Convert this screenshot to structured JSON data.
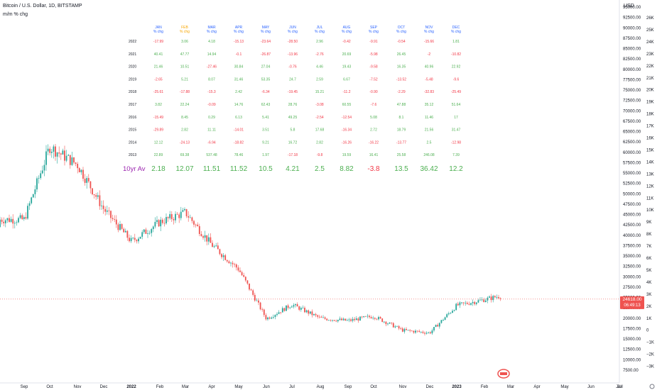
{
  "header": {
    "symbol": "Bitcoin / U.S. Dollar, 1D, BITSTAMP",
    "indicator": "m/m % chg",
    "currency": "USD"
  },
  "colors": {
    "up": "#26a69a",
    "down": "#ef5350",
    "month_header": "#2962ff",
    "feb_header": "#f7a600",
    "avg_label": "#9c27b0",
    "pos_value": "#4caf50",
    "neg_value": "#f23645"
  },
  "table": {
    "sub_label": "% chg",
    "months": [
      "JAN",
      "FEB",
      "MAR",
      "APR",
      "MAY",
      "JUN",
      "JUL",
      "AUG",
      "SEP",
      "OCT",
      "NOV",
      "DEC"
    ],
    "rows": [
      {
        "year": "2022",
        "values": [
          "-17.99",
          "3.06",
          "4.18",
          "-15.13",
          "-23.64",
          "-28.50",
          "2.96",
          "-0.42",
          "-9.91",
          "-0.54",
          "-15.66",
          "1.81"
        ]
      },
      {
        "year": "2021",
        "values": [
          "40.41",
          "47.77",
          "14.94",
          "-0.1",
          "-26.87",
          "-13.96",
          "-2.76",
          "20.69",
          "-5.98",
          "26.45",
          "-2",
          "-10.82"
        ]
      },
      {
        "year": "2020",
        "values": [
          "21.46",
          "10.51",
          "-27.46",
          "30.84",
          "27.04",
          "-0.76",
          "4.46",
          "19.43",
          "-9.58",
          "16.35",
          "40.96",
          "22.92"
        ]
      },
      {
        "year": "2019",
        "values": [
          "-2.65",
          "5.21",
          "8.07",
          "31.46",
          "53.35",
          "24.7",
          "2.59",
          "6.67",
          "-7.52",
          "-13.52",
          "-5.48",
          "-9.6"
        ]
      },
      {
        "year": "2018",
        "values": [
          "-25.61",
          "-17.88",
          "-15.3",
          "2.42",
          "-6.34",
          "-19.45",
          "15.21",
          "-11.2",
          "-0.90",
          "-2.29",
          "-32.83",
          "-25.49"
        ]
      },
      {
        "year": "2017",
        "values": [
          "3.82",
          "22.24",
          "-0.09",
          "14.76",
          "62.43",
          "28.76",
          "-3.08",
          "60.55",
          "-7.6",
          "47.88",
          "35.12",
          "51.64"
        ]
      },
      {
        "year": "2016",
        "values": [
          "-15.49",
          "8.45",
          "0.29",
          "6.13",
          "5.41",
          "49.25",
          "-2.54",
          "-12.54",
          "5.08",
          "8.1",
          "11.46",
          "17"
        ]
      },
      {
        "year": "2015",
        "values": [
          "-29.89",
          "2.82",
          "11.11",
          "-14.01",
          "3.51",
          "5.8",
          "17.68",
          "-16.34",
          "2.72",
          "18.79",
          "21.56",
          "31.47"
        ]
      },
      {
        "year": "2014",
        "values": [
          "12.12",
          "-24.13",
          "-6.94",
          "-18.82",
          "9.21",
          "16.72",
          "2.82",
          "-16.26",
          "-16.22",
          "-13.77",
          "2.5",
          "-12.98"
        ]
      },
      {
        "year": "2013",
        "values": [
          "22.89",
          "69.38",
          "537.48",
          "78.46",
          "1.97",
          "-17.18",
          "-9.8",
          "19.59",
          "16.41",
          "25.58",
          "246.08",
          "7.39"
        ]
      }
    ],
    "avg_label": "10yr Av",
    "avg_values": [
      "2.18",
      "12.07",
      "11.51",
      "11.52",
      "10.5",
      "4.21",
      "2.5",
      "8.82",
      "-3.8",
      "13.5",
      "36.42",
      "12.2"
    ]
  },
  "chart_data": {
    "type": "candlestick",
    "x": [
      "Sep 2021",
      "Oct 2021",
      "Nov 2021",
      "Dec 2021",
      "Jan 2022",
      "Feb 2022",
      "Mar 2022",
      "Apr 2022",
      "May 2022",
      "Jun 2022",
      "Jul 2022",
      "Aug 2022",
      "Sep 2022",
      "Oct 2022",
      "Nov 2022",
      "Dec 2022",
      "Jan 2023",
      "Feb 2023"
    ],
    "close": [
      43800,
      61300,
      57000,
      46300,
      38500,
      43200,
      45500,
      37700,
      31800,
      19900,
      23300,
      20000,
      19400,
      20500,
      17100,
      16500,
      23100,
      24500
    ],
    "last_price": "24618.00",
    "countdown": "06:49:13",
    "ylim": [
      5000,
      97500
    ],
    "x_ticks": [
      "Sep",
      "Oct",
      "Nov",
      "Dec",
      "2022",
      "Feb",
      "Mar",
      "Apr",
      "May",
      "Jun",
      "Jul",
      "Aug",
      "Sep",
      "Oct",
      "Nov",
      "Dec",
      "2023",
      "Feb",
      "Mar",
      "Apr",
      "May",
      "Jun",
      "Jul",
      "Jul",
      "Au"
    ],
    "y_ticks_usd": [
      "95000.00",
      "92500.00",
      "90000.00",
      "87500.00",
      "85000.00",
      "82500.00",
      "80000.00",
      "77500.00",
      "75000.00",
      "72500.00",
      "70000.00",
      "67500.00",
      "65000.00",
      "62500.00",
      "60000.00",
      "57500.00",
      "55000.00",
      "52500.00",
      "50000.00",
      "47500.00",
      "45000.00",
      "42500.00",
      "40000.00",
      "37500.00",
      "35000.00",
      "32500.00",
      "30000.00",
      "27500.00",
      "25000.00",
      "22500.00",
      "20000.00",
      "17500.00",
      "15000.00",
      "12500.00",
      "10000.00",
      "7500.00"
    ],
    "y_ticks_pct": [
      "26K",
      "25K",
      "24K",
      "23K",
      "22K",
      "21K",
      "20K",
      "19K",
      "18K",
      "17K",
      "16K",
      "15K",
      "14K",
      "13K",
      "12K",
      "11K",
      "10K",
      "9K",
      "8K",
      "7K",
      "6K",
      "5K",
      "4K",
      "3K",
      "2K",
      "1K",
      "0",
      "−1K",
      "−2K",
      "−3K"
    ]
  }
}
